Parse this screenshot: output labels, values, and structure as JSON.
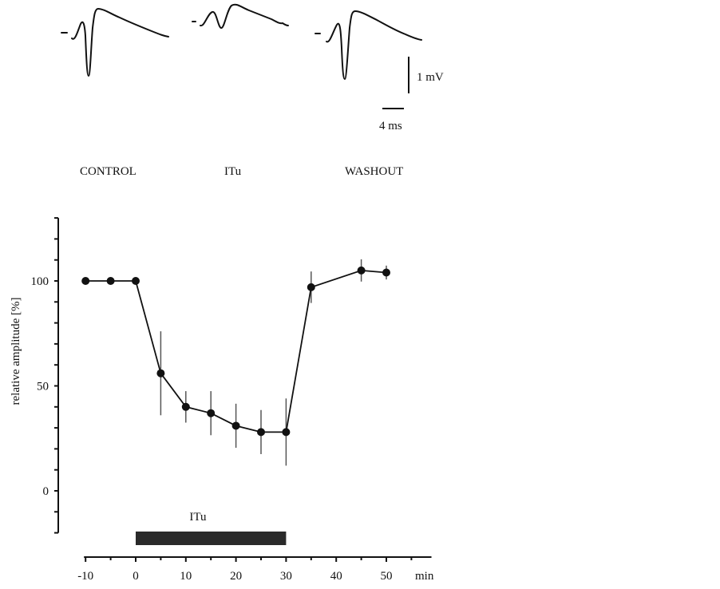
{
  "traces": {
    "labels": [
      "CONTROL",
      "ITu",
      "WASHOUT"
    ],
    "scale_bar_voltage": "1 mV",
    "scale_bar_time": "4 ms"
  },
  "chart_data": {
    "type": "line",
    "title": "",
    "xlabel": "min",
    "ylabel": "relative amplitude [%]",
    "xlim": [
      -10,
      55
    ],
    "ylim": [
      -20,
      130
    ],
    "x_ticks": [
      -10,
      0,
      10,
      20,
      30,
      40,
      50
    ],
    "x_tick_labels": [
      "-10",
      "0",
      "10",
      "20",
      "30",
      "40",
      "50"
    ],
    "y_ticks": [
      0,
      50,
      100
    ],
    "y_tick_labels": [
      "0",
      "50",
      "100"
    ],
    "grid": false,
    "x": [
      -10,
      -5,
      0,
      5,
      10,
      15,
      20,
      25,
      30,
      35,
      45,
      50
    ],
    "y": [
      100,
      100,
      100,
      56,
      40,
      37,
      31,
      28,
      28,
      97,
      105,
      104
    ],
    "error": [
      0,
      0,
      0,
      20,
      7.5,
      10.5,
      10.5,
      10.5,
      16,
      7.5,
      5.3,
      3.3
    ],
    "annotation": {
      "label": "ITu",
      "start": 0,
      "end": 30
    },
    "colors": {
      "line": "#111111",
      "bar": "#2a2a2a"
    }
  }
}
